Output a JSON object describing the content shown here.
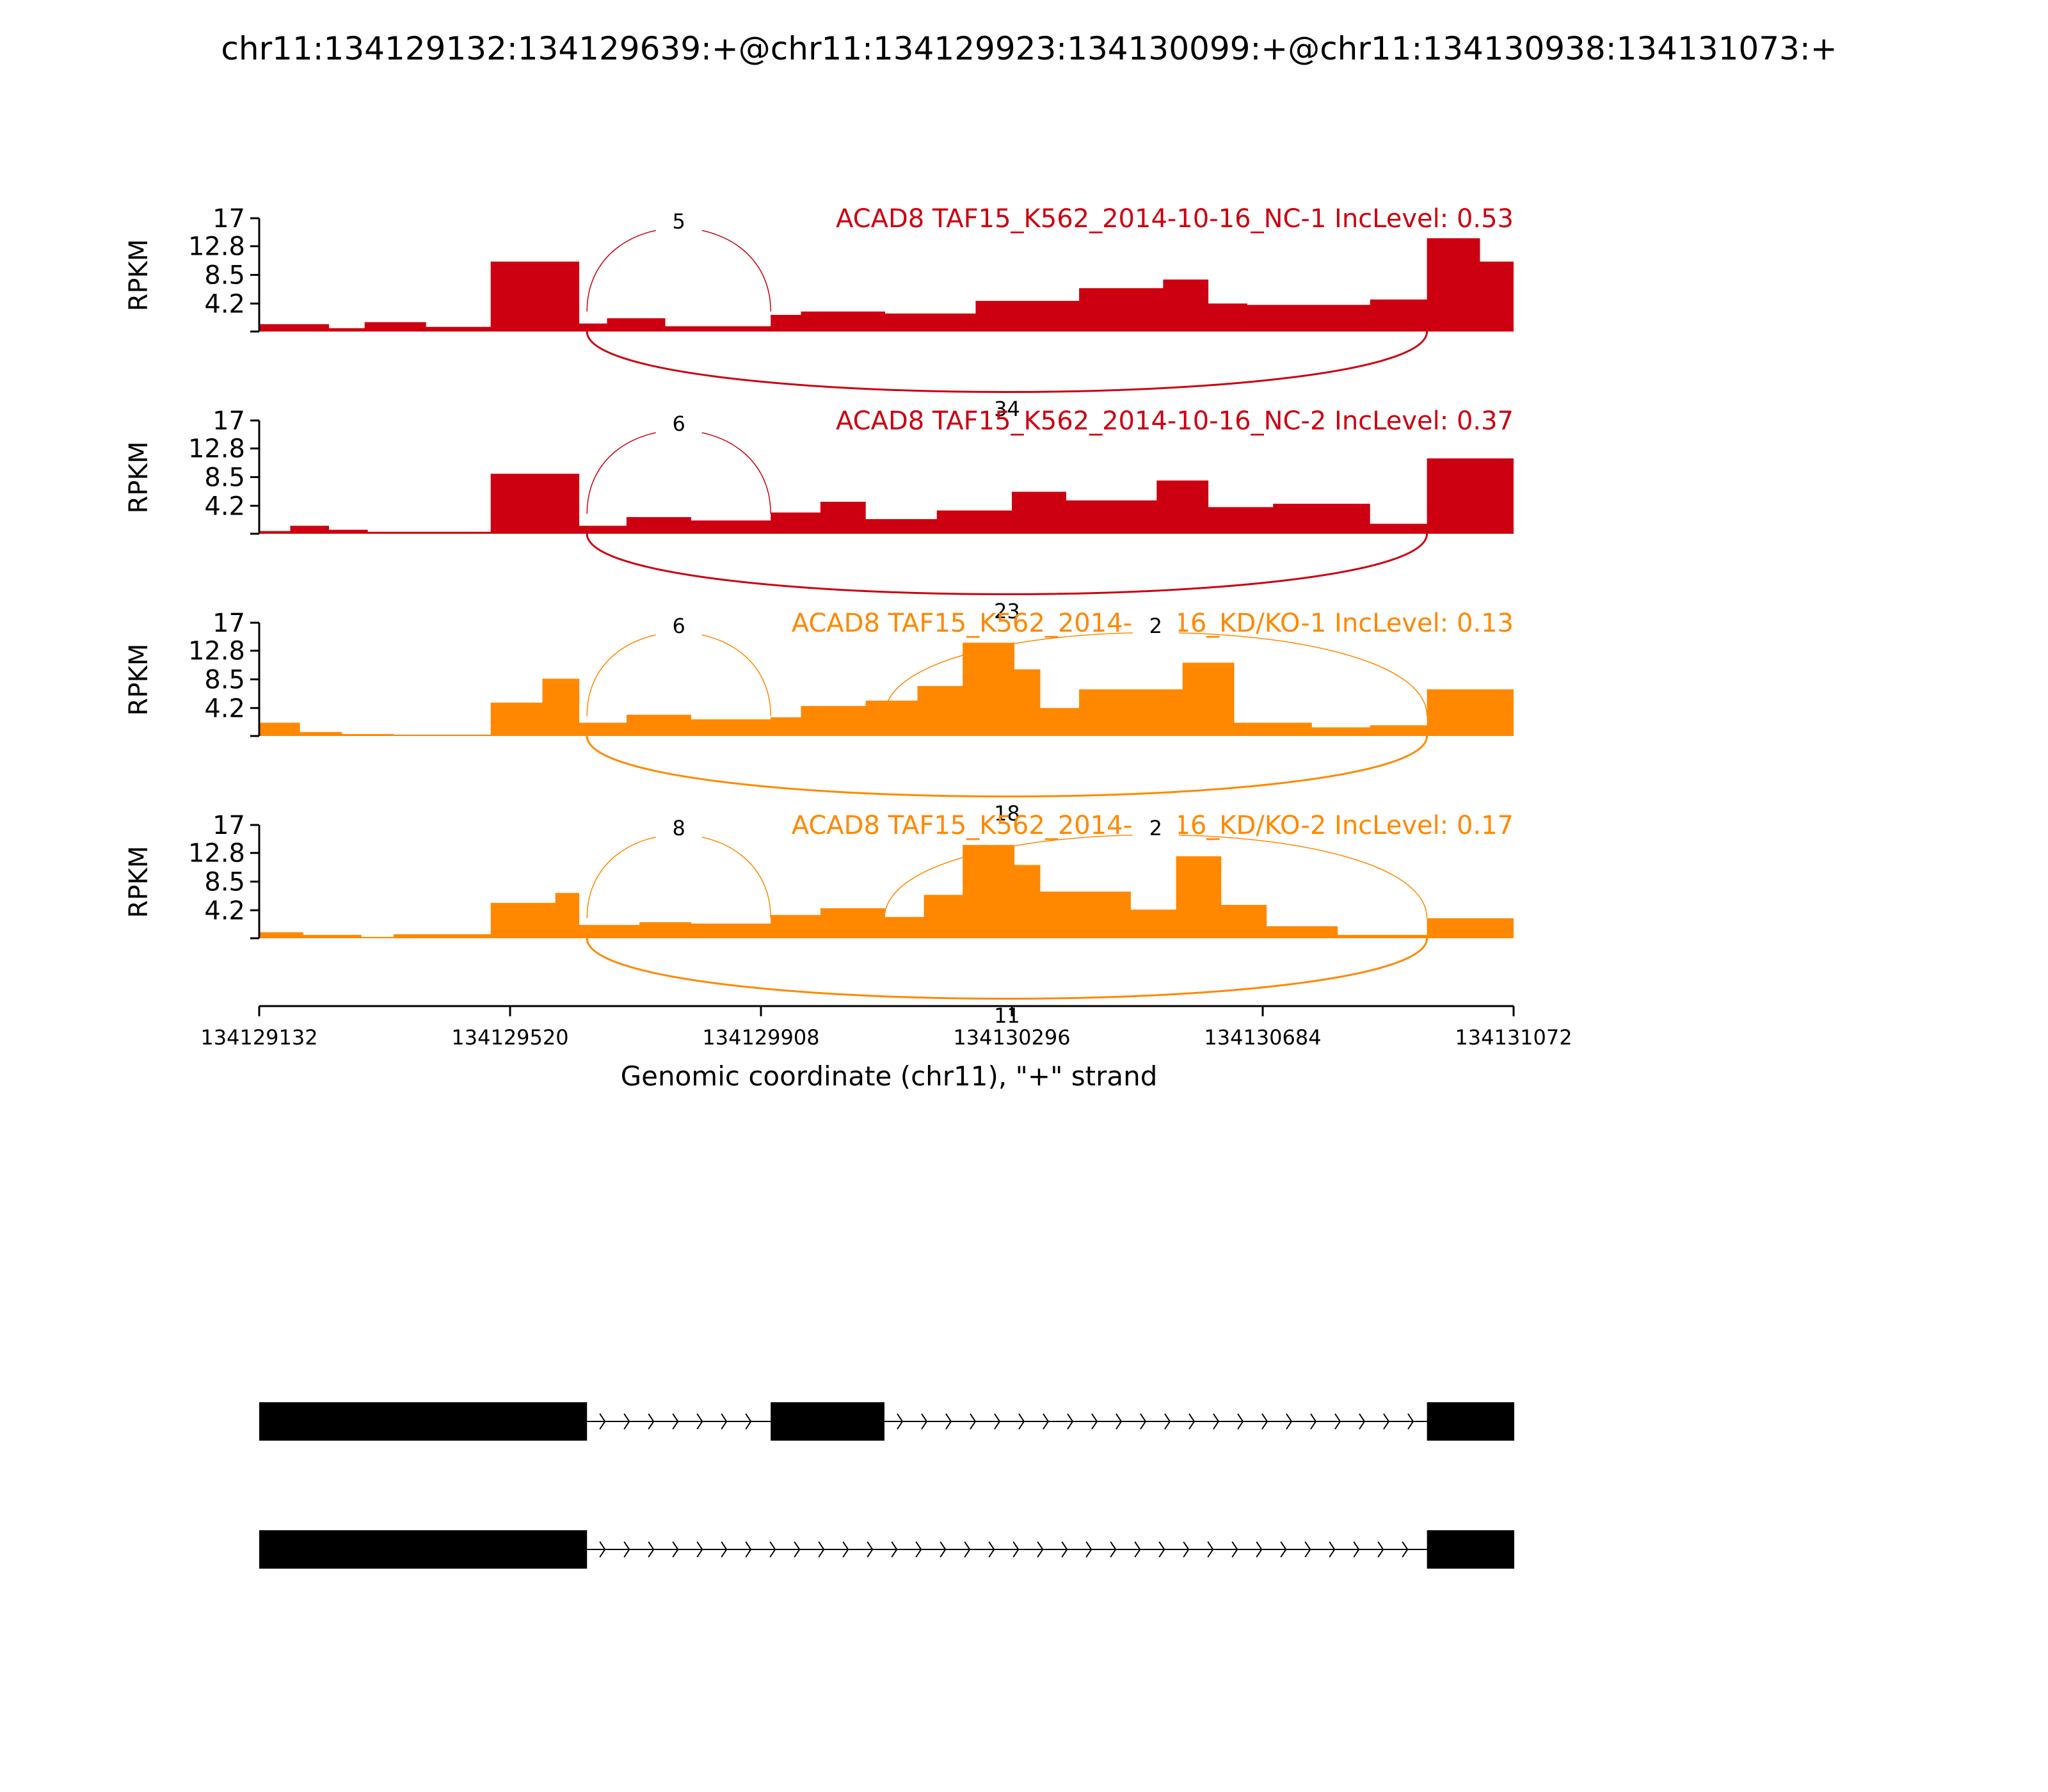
{
  "chart_data": {
    "type": "area",
    "title": "chr11:134129132:134129639:+@chr11:134129923:134130099:+@chr11:134130938:134131073:+",
    "xlabel": "Genomic coordinate (chr11), \"+\" strand",
    "ylabel": "RPKM",
    "xlim": [
      134129132,
      134131072
    ],
    "ylim": [
      0,
      17
    ],
    "x_ticks": [
      {
        "value": 134129132,
        "label": "134129132"
      },
      {
        "value": 134129520,
        "label": "134129520"
      },
      {
        "value": 134129908,
        "label": "134129908"
      },
      {
        "value": 134130296,
        "label": "134130296"
      },
      {
        "value": 134130684,
        "label": "134130684"
      },
      {
        "value": 134131072,
        "label": "134131072"
      }
    ],
    "y_ticks": [
      {
        "value": 4.2,
        "label": "4.2"
      },
      {
        "value": 8.5,
        "label": "8.5"
      },
      {
        "value": 12.8,
        "label": "12.8"
      },
      {
        "value": 17,
        "label": "17"
      }
    ],
    "series": [
      {
        "name": "ACAD8 TAF15_K562_2014-10-16_NC-1 IncLevel: 0.53",
        "color": "#CC0011",
        "coverage": [
          [
            134129132,
            134129240,
            1.1
          ],
          [
            134129240,
            134129295,
            0.5
          ],
          [
            134129295,
            134129390,
            1.4
          ],
          [
            134129390,
            134129490,
            0.7
          ],
          [
            134129490,
            134129627,
            10.5
          ],
          [
            134129627,
            134129670,
            1.2
          ],
          [
            134129670,
            134129760,
            2.0
          ],
          [
            134129760,
            134129923,
            0.8
          ],
          [
            134129923,
            134129970,
            2.5
          ],
          [
            134129970,
            134130100,
            3.0
          ],
          [
            134130100,
            134130240,
            2.7
          ],
          [
            134130240,
            134130400,
            4.6
          ],
          [
            134130400,
            134130530,
            6.5
          ],
          [
            134130530,
            134130600,
            7.8
          ],
          [
            134130600,
            134130660,
            4.2
          ],
          [
            134130660,
            134130850,
            4.0
          ],
          [
            134130850,
            134130938,
            4.8
          ],
          [
            134130938,
            134131020,
            14.0
          ],
          [
            134131020,
            134131072,
            10.5
          ]
        ],
        "junctions": [
          {
            "from": 134129639,
            "to": 134129923,
            "count": "5",
            "side": "above"
          },
          {
            "from": 134129639,
            "to": 134130938,
            "count": "34",
            "side": "below"
          }
        ]
      },
      {
        "name": "ACAD8 TAF15_K562_2014-10-16_NC-2 IncLevel: 0.37",
        "color": "#CC0011",
        "coverage": [
          [
            134129132,
            134129180,
            0.4
          ],
          [
            134129180,
            134129240,
            1.2
          ],
          [
            134129240,
            134129300,
            0.6
          ],
          [
            134129300,
            134129490,
            0.3
          ],
          [
            134129490,
            134129627,
            9.0
          ],
          [
            134129627,
            134129700,
            1.2
          ],
          [
            134129700,
            134129800,
            2.5
          ],
          [
            134129800,
            134129923,
            2.0
          ],
          [
            134129923,
            134130000,
            3.2
          ],
          [
            134130000,
            134130070,
            4.8
          ],
          [
            134130070,
            134130180,
            2.2
          ],
          [
            134130180,
            134130296,
            3.5
          ],
          [
            134130296,
            134130380,
            6.3
          ],
          [
            134130380,
            134130520,
            5.0
          ],
          [
            134130520,
            134130600,
            8.0
          ],
          [
            134130600,
            134130700,
            4.0
          ],
          [
            134130700,
            134130850,
            4.5
          ],
          [
            134130850,
            134130938,
            1.5
          ],
          [
            134130938,
            134131072,
            11.3
          ]
        ],
        "junctions": [
          {
            "from": 134129639,
            "to": 134129923,
            "count": "6",
            "side": "above"
          },
          {
            "from": 134129639,
            "to": 134130938,
            "count": "23",
            "side": "below"
          }
        ]
      },
      {
        "name": "ACAD8 TAF15_K562_2014-10-16_KD/KO-1 IncLevel: 0.13",
        "color": "#FF8800",
        "coverage": [
          [
            134129132,
            134129195,
            2.0
          ],
          [
            134129195,
            134129260,
            0.6
          ],
          [
            134129260,
            134129340,
            0.3
          ],
          [
            134129340,
            134129490,
            0.2
          ],
          [
            134129490,
            134129570,
            5.0
          ],
          [
            134129570,
            134129627,
            8.6
          ],
          [
            134129627,
            134129700,
            2.0
          ],
          [
            134129700,
            134129800,
            3.2
          ],
          [
            134129800,
            134129923,
            2.5
          ],
          [
            134129923,
            134129970,
            2.8
          ],
          [
            134129970,
            134130070,
            4.5
          ],
          [
            134130070,
            134130150,
            5.3
          ],
          [
            134130150,
            134130220,
            7.5
          ],
          [
            134130220,
            134130300,
            14.0
          ],
          [
            134130300,
            134130340,
            10.0
          ],
          [
            134130340,
            134130400,
            4.2
          ],
          [
            134130400,
            134130560,
            7.0
          ],
          [
            134130560,
            134130640,
            11.0
          ],
          [
            134130640,
            134130760,
            2.0
          ],
          [
            134130760,
            134130850,
            1.3
          ],
          [
            134130850,
            134130938,
            1.6
          ],
          [
            134130938,
            134131072,
            7.0
          ]
        ],
        "junctions": [
          {
            "from": 134129639,
            "to": 134129923,
            "count": "6",
            "side": "above"
          },
          {
            "from": 134130099,
            "to": 134130938,
            "count": "2",
            "side": "above"
          },
          {
            "from": 134129639,
            "to": 134130938,
            "count": "18",
            "side": "below"
          }
        ]
      },
      {
        "name": "ACAD8 TAF15_K562_2014-10-16_KD/KO-2 IncLevel: 0.17",
        "color": "#FF8800",
        "coverage": [
          [
            134129132,
            134129200,
            0.9
          ],
          [
            134129200,
            134129290,
            0.5
          ],
          [
            134129290,
            134129340,
            0.2
          ],
          [
            134129340,
            134129490,
            0.6
          ],
          [
            134129490,
            134129590,
            5.3
          ],
          [
            134129590,
            134129627,
            6.8
          ],
          [
            134129627,
            134129720,
            2.0
          ],
          [
            134129720,
            134129800,
            2.4
          ],
          [
            134129800,
            134129923,
            2.2
          ],
          [
            134129923,
            134130000,
            3.5
          ],
          [
            134130000,
            134130100,
            4.5
          ],
          [
            134130100,
            134130160,
            3.2
          ],
          [
            134130160,
            134130220,
            6.5
          ],
          [
            134130220,
            134130300,
            14.0
          ],
          [
            134130300,
            134130340,
            11.0
          ],
          [
            134130340,
            134130480,
            7.0
          ],
          [
            134130480,
            134130550,
            4.3
          ],
          [
            134130550,
            134130620,
            12.3
          ],
          [
            134130620,
            134130690,
            5.0
          ],
          [
            134130690,
            134130800,
            1.8
          ],
          [
            134130800,
            134130938,
            0.5
          ],
          [
            134130938,
            134131072,
            3.0
          ]
        ],
        "junctions": [
          {
            "from": 134129639,
            "to": 134129923,
            "count": "8",
            "side": "above"
          },
          {
            "from": 134130099,
            "to": 134130938,
            "count": "2",
            "side": "above"
          },
          {
            "from": 134129639,
            "to": 134130938,
            "count": "11",
            "side": "below"
          }
        ]
      }
    ],
    "isoforms": [
      {
        "exons": [
          [
            134129132,
            134129639
          ],
          [
            134129923,
            134130099
          ],
          [
            134130938,
            134131073
          ]
        ]
      },
      {
        "exons": [
          [
            134129132,
            134129639
          ],
          [
            134130938,
            134131073
          ]
        ]
      }
    ]
  }
}
